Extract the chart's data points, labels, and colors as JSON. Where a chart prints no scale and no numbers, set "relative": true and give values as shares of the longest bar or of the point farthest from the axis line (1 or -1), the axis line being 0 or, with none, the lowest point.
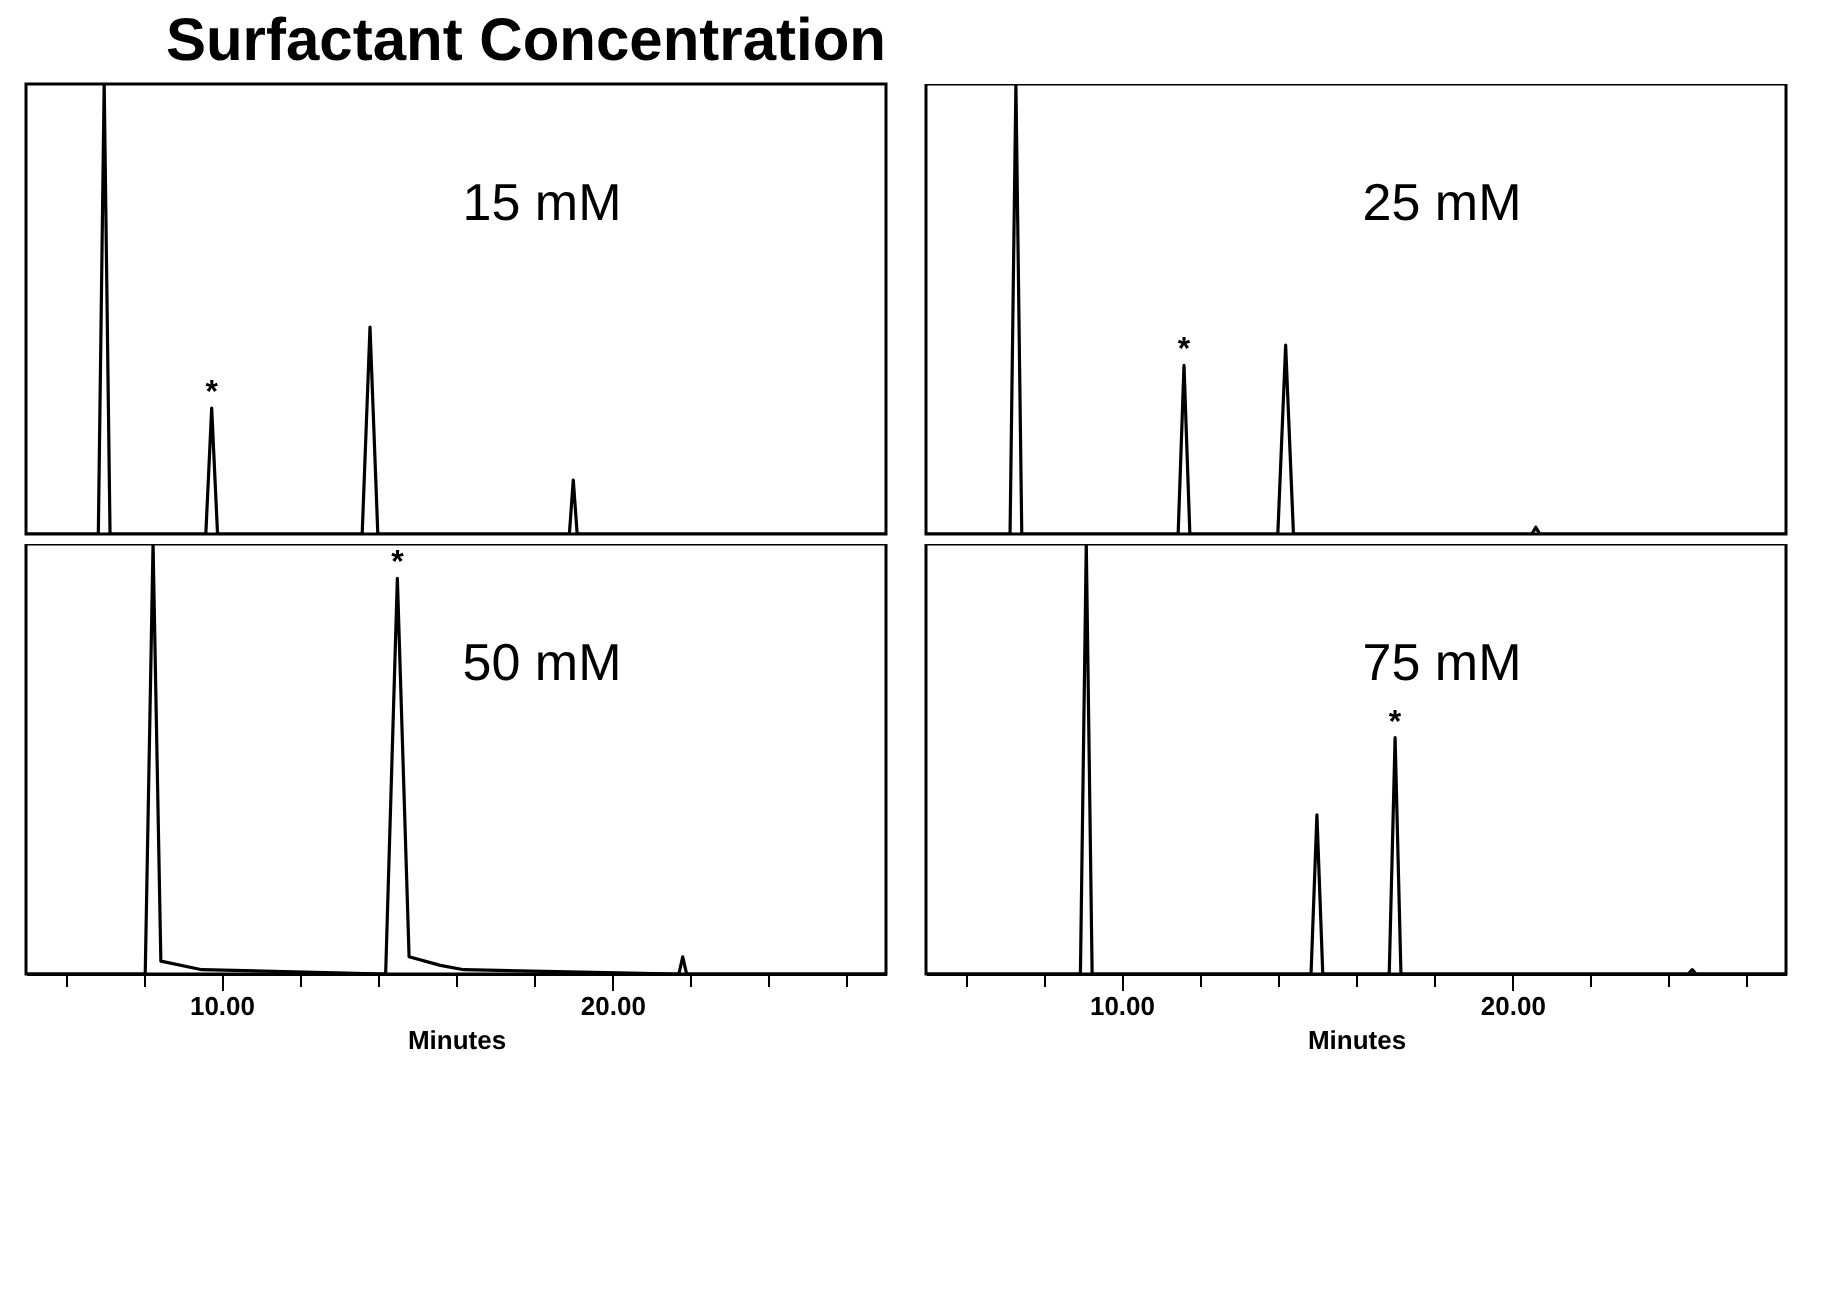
{
  "chart_data": [
    {
      "type": "line",
      "title": "Surfactant Concentration",
      "relative": true,
      "xlim": [
        5,
        27
      ],
      "series": [
        {
          "name": "15 mM",
          "color": "#000000",
          "x": [
            5,
            6.85,
            7.0,
            7.15,
            9.6,
            9.75,
            9.9,
            13.6,
            13.8,
            14.0,
            18.9,
            19.0,
            19.1,
            27
          ],
          "values": [
            0,
            0,
            1,
            0,
            0,
            0.28,
            0,
            0,
            0.46,
            0,
            0,
            0.12,
            0,
            0
          ]
        }
      ],
      "annotations": [
        {
          "text": "*",
          "x": 9.75,
          "y": 0.28
        }
      ]
    },
    {
      "type": "line",
      "relative": true,
      "xlim": [
        5,
        27
      ],
      "series": [
        {
          "name": "25 mM",
          "color": "#000000",
          "x": [
            5,
            7.15,
            7.3,
            7.45,
            11.45,
            11.6,
            11.75,
            14.0,
            14.2,
            14.4,
            20.5,
            20.6,
            20.7,
            27
          ],
          "values": [
            0,
            0,
            1,
            0,
            0,
            0.375,
            0,
            0,
            0.42,
            0,
            0,
            0.015,
            0,
            0
          ]
        }
      ],
      "annotations": [
        {
          "text": "*",
          "x": 11.6,
          "y": 0.375
        }
      ]
    },
    {
      "type": "line",
      "relative": true,
      "xlim": [
        5,
        27
      ],
      "xlabel": "Minutes",
      "xticks": [
        {
          "value": 6,
          "label": null
        },
        {
          "value": 8,
          "label": null
        },
        {
          "value": 10,
          "label": "10.00"
        },
        {
          "value": 12,
          "label": null
        },
        {
          "value": 14,
          "label": null
        },
        {
          "value": 16,
          "label": null
        },
        {
          "value": 18,
          "label": null
        },
        {
          "value": 20,
          "label": "20.00"
        },
        {
          "value": 22,
          "label": null
        },
        {
          "value": 24,
          "label": null
        },
        {
          "value": 26,
          "label": null
        }
      ],
      "series": [
        {
          "name": "50 mM",
          "color": "#000000",
          "x": [
            5,
            8.05,
            8.25,
            8.45,
            9.5,
            14.2,
            14.5,
            14.8,
            15.6,
            16.2,
            21.7,
            21.8,
            21.9,
            27
          ],
          "values": [
            0,
            0,
            1,
            0.03,
            0.01,
            0,
            0.92,
            0.04,
            0.02,
            0.01,
            0,
            0.04,
            0,
            0
          ]
        }
      ],
      "annotations": [
        {
          "text": "*",
          "x": 14.5,
          "y": 0.92
        }
      ]
    },
    {
      "type": "line",
      "relative": true,
      "xlim": [
        5,
        27
      ],
      "xlabel": "Minutes",
      "xticks": [
        {
          "value": 6,
          "label": null
        },
        {
          "value": 8,
          "label": null
        },
        {
          "value": 10,
          "label": "10.00"
        },
        {
          "value": 12,
          "label": null
        },
        {
          "value": 14,
          "label": null
        },
        {
          "value": 16,
          "label": null
        },
        {
          "value": 18,
          "label": null
        },
        {
          "value": 20,
          "label": "20.00"
        },
        {
          "value": 22,
          "label": null
        },
        {
          "value": 24,
          "label": null
        },
        {
          "value": 26,
          "label": null
        }
      ],
      "series": [
        {
          "name": "75 mM",
          "color": "#000000",
          "x": [
            5,
            8.95,
            9.1,
            9.25,
            14.85,
            15.0,
            15.15,
            16.85,
            17.0,
            17.15,
            24.5,
            24.6,
            24.7,
            27
          ],
          "values": [
            0,
            0,
            1,
            0,
            0,
            0.37,
            0,
            0,
            0.55,
            0,
            0,
            0.01,
            0,
            0
          ]
        }
      ],
      "annotations": [
        {
          "text": "*",
          "x": 17.0,
          "y": 0.55
        }
      ]
    }
  ]
}
